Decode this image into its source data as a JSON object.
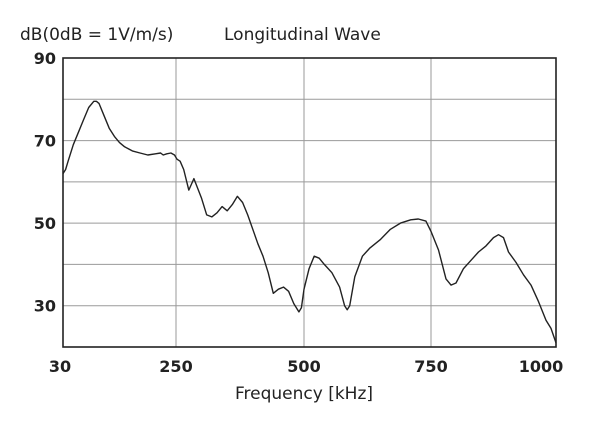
{
  "chart_data": {
    "type": "line",
    "ylabel": "dB(0dB = 1V/m/s)",
    "title": "Longitudinal Wave",
    "xlabel": "Frequency [kHz]",
    "x_ticks": [
      "30",
      "250",
      "500",
      "750",
      "1000"
    ],
    "y_ticks": [
      "90",
      "70",
      "50",
      "30"
    ],
    "ylim": [
      20,
      90
    ],
    "grid": true,
    "x_scale": "segmented: 30-250, 250-500, 500-750, 750-1000 kHz drawn as equal spans",
    "colors": {
      "line": "#222222",
      "grid": "#9a9a9a",
      "frame": "#222222"
    },
    "series": [
      {
        "x": [
          30,
          35,
          40,
          50,
          60,
          70,
          80,
          90,
          95,
          100,
          110,
          120,
          130,
          140,
          150,
          165,
          180,
          195,
          210,
          220,
          225,
          232,
          240,
          247,
          252,
          258,
          265,
          275,
          285,
          300,
          310,
          320,
          330,
          340,
          350,
          360,
          370,
          380,
          390,
          400,
          410,
          420,
          430,
          440,
          450,
          460,
          470,
          480,
          490,
          495,
          500,
          510,
          520,
          530,
          540,
          555,
          570,
          580,
          585,
          590,
          600,
          615,
          630,
          650,
          670,
          690,
          710,
          725,
          740,
          750,
          765,
          780,
          790,
          800,
          815,
          830,
          845,
          860,
          875,
          885,
          895,
          905,
          920,
          935,
          950,
          965,
          980,
          990,
          1000
        ],
        "y": [
          62,
          63,
          65,
          69,
          72,
          75,
          78,
          79.5,
          79.5,
          79,
          76,
          73,
          71,
          69.5,
          68.5,
          67.5,
          67,
          66.5,
          66.8,
          67,
          66.5,
          66.8,
          67,
          66.5,
          65.5,
          65,
          63,
          58,
          60.8,
          56,
          52,
          51.5,
          52.5,
          54,
          53,
          54.5,
          56.5,
          55,
          52,
          48.5,
          45,
          42,
          38,
          33,
          34,
          34.5,
          33.5,
          30.5,
          28.5,
          29.5,
          34,
          39,
          42,
          41.5,
          40,
          38,
          34.5,
          30,
          29,
          30,
          37,
          42,
          44,
          46,
          48.5,
          50,
          50.8,
          51,
          50.5,
          48,
          43.5,
          36.5,
          35,
          35.5,
          39,
          41,
          43,
          44.5,
          46.5,
          47.2,
          46.5,
          43,
          40.5,
          37.5,
          35,
          31,
          26.5,
          24.5,
          21
        ]
      }
    ]
  }
}
